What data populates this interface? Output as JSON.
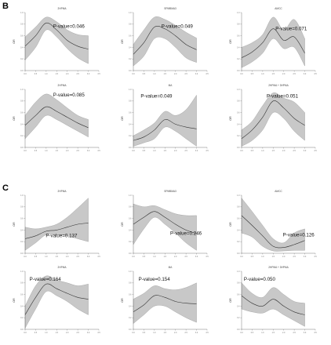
{
  "panels": [
    {
      "label": "B"
    },
    {
      "label": "C"
    }
  ],
  "chart_data": [
    {
      "type": "line",
      "panel": "B",
      "title": "2HPMA",
      "ylabel": "OR",
      "p_text": "P-value=0.046",
      "xlim": [
        0,
        3.5
      ],
      "ylim": [
        0,
        1
      ],
      "x": [
        0,
        0.5,
        1,
        1.5,
        2,
        2.5,
        3
      ],
      "values": [
        0.42,
        0.6,
        0.82,
        0.7,
        0.52,
        0.42,
        0.37
      ],
      "lower": [
        0.18,
        0.4,
        0.7,
        0.58,
        0.38,
        0.22,
        0.12
      ],
      "upper": [
        0.58,
        0.75,
        0.92,
        0.84,
        0.7,
        0.62,
        0.6
      ]
    },
    {
      "type": "line",
      "panel": "B",
      "title": "SPMBMA3",
      "ylabel": "OR",
      "p_text": "P-value=0.049",
      "xlim": [
        0,
        3.5
      ],
      "ylim": [
        0,
        1
      ],
      "x": [
        0,
        0.5,
        1,
        1.5,
        2,
        2.5,
        3
      ],
      "values": [
        0.28,
        0.48,
        0.75,
        0.72,
        0.6,
        0.45,
        0.36
      ],
      "lower": [
        0.08,
        0.25,
        0.55,
        0.55,
        0.4,
        0.22,
        0.14
      ],
      "upper": [
        0.45,
        0.7,
        0.92,
        0.88,
        0.78,
        0.66,
        0.56
      ]
    },
    {
      "type": "line",
      "panel": "B",
      "title": "AMCC",
      "ylabel": "OR",
      "p_text": "P-value=0.071",
      "xlim": [
        0,
        3.5
      ],
      "ylim": [
        0,
        1
      ],
      "x": [
        0,
        0.5,
        1,
        1.5,
        2,
        2.5,
        3
      ],
      "values": [
        0.22,
        0.32,
        0.48,
        0.72,
        0.52,
        0.58,
        0.3
      ],
      "lower": [
        0.05,
        0.15,
        0.3,
        0.55,
        0.38,
        0.4,
        0.08
      ],
      "upper": [
        0.4,
        0.48,
        0.62,
        0.92,
        0.7,
        0.88,
        0.55
      ]
    },
    {
      "type": "line",
      "panel": "B",
      "title": "2HPMA",
      "ylabel": "OR",
      "p_text": "P-value=0.085",
      "xlim": [
        0,
        3.5
      ],
      "ylim": [
        0,
        1
      ],
      "x": [
        0,
        0.5,
        1,
        1.5,
        2,
        2.5,
        3
      ],
      "values": [
        0.38,
        0.55,
        0.7,
        0.62,
        0.52,
        0.42,
        0.34
      ],
      "lower": [
        0.15,
        0.35,
        0.55,
        0.48,
        0.38,
        0.28,
        0.18
      ],
      "upper": [
        0.55,
        0.78,
        0.92,
        0.82,
        0.68,
        0.55,
        0.48
      ]
    },
    {
      "type": "line",
      "panel": "B",
      "title": "MA",
      "ylabel": "OR",
      "p_text": "P-value=0.049",
      "xlim": [
        0,
        3.5
      ],
      "ylim": [
        0,
        1
      ],
      "x": [
        0,
        0.5,
        1,
        1.5,
        2,
        2.5,
        3
      ],
      "values": [
        0.12,
        0.18,
        0.3,
        0.48,
        0.4,
        0.35,
        0.32
      ],
      "lower": [
        0.02,
        0.08,
        0.15,
        0.35,
        0.28,
        0.15,
        0.02
      ],
      "upper": [
        0.2,
        0.3,
        0.42,
        0.62,
        0.55,
        0.65,
        0.9
      ]
    },
    {
      "type": "line",
      "panel": "B",
      "title": "2HPMA + 3HPMA",
      "ylabel": "OR",
      "p_text": "P-value=0.051",
      "xlim": [
        0,
        3.5
      ],
      "ylim": [
        0,
        1
      ],
      "x": [
        0,
        0.5,
        1,
        1.5,
        2,
        2.5,
        3
      ],
      "values": [
        0.15,
        0.3,
        0.52,
        0.8,
        0.68,
        0.5,
        0.38
      ],
      "lower": [
        0.02,
        0.12,
        0.3,
        0.6,
        0.5,
        0.28,
        0.12
      ],
      "upper": [
        0.3,
        0.45,
        0.72,
        0.94,
        0.85,
        0.78,
        0.6
      ]
    },
    {
      "type": "line",
      "panel": "C",
      "title": "2HPMA",
      "ylabel": "OR",
      "p_text": "P-value=0.137",
      "xlim": [
        0,
        3.5
      ],
      "ylim": [
        0,
        1
      ],
      "x": [
        0,
        0.5,
        1,
        1.5,
        2,
        2.5,
        3
      ],
      "values": [
        0.25,
        0.3,
        0.38,
        0.4,
        0.45,
        0.5,
        0.52
      ],
      "lower": [
        0.05,
        0.18,
        0.32,
        0.32,
        0.3,
        0.25,
        0.2
      ],
      "upper": [
        0.45,
        0.42,
        0.45,
        0.5,
        0.62,
        0.78,
        0.95
      ]
    },
    {
      "type": "line",
      "panel": "C",
      "title": "SPMBMA3",
      "ylabel": "OR",
      "p_text": "P-value=0.246",
      "xlim": [
        0,
        3.5
      ],
      "ylim": [
        0,
        1
      ],
      "x": [
        0,
        0.5,
        1,
        1.5,
        2,
        2.5,
        3
      ],
      "values": [
        0.5,
        0.62,
        0.72,
        0.62,
        0.5,
        0.4,
        0.34
      ],
      "lower": [
        0.15,
        0.42,
        0.62,
        0.5,
        0.35,
        0.18,
        0.05
      ],
      "upper": [
        0.85,
        0.8,
        0.82,
        0.75,
        0.68,
        0.65,
        0.65
      ]
    },
    {
      "type": "line",
      "panel": "C",
      "title": "AMCC",
      "ylabel": "OR",
      "p_text": "P-value=0.126",
      "xlim": [
        0,
        3.5
      ],
      "ylim": [
        0,
        1
      ],
      "x": [
        0,
        0.5,
        1,
        1.5,
        2,
        2.5,
        3
      ],
      "values": [
        0.65,
        0.48,
        0.3,
        0.12,
        0.1,
        0.15,
        0.22
      ],
      "lower": [
        0.35,
        0.28,
        0.12,
        0.04,
        0.04,
        0.05,
        0.05
      ],
      "upper": [
        0.95,
        0.72,
        0.48,
        0.25,
        0.18,
        0.35,
        0.42
      ]
    },
    {
      "type": "line",
      "panel": "C",
      "title": "2HPMA",
      "ylabel": "OR",
      "p_text": "P-value=0.164",
      "xlim": [
        0,
        3.5
      ],
      "ylim": [
        0,
        1
      ],
      "x": [
        0,
        0.5,
        1,
        1.5,
        2,
        2.5,
        3
      ],
      "values": [
        0.25,
        0.55,
        0.78,
        0.7,
        0.62,
        0.55,
        0.52
      ],
      "lower": [
        0.02,
        0.35,
        0.65,
        0.58,
        0.48,
        0.35,
        0.25
      ],
      "upper": [
        0.4,
        0.75,
        0.92,
        0.85,
        0.8,
        0.75,
        0.78
      ]
    },
    {
      "type": "line",
      "panel": "C",
      "title": "MA",
      "ylabel": "OR",
      "p_text": "P-value=0.154",
      "xlim": [
        0,
        3.5
      ],
      "ylim": [
        0,
        1
      ],
      "x": [
        0,
        0.5,
        1,
        1.5,
        2,
        2.5,
        3
      ],
      "values": [
        0.3,
        0.42,
        0.58,
        0.55,
        0.48,
        0.45,
        0.44
      ],
      "lower": [
        0.1,
        0.25,
        0.4,
        0.4,
        0.3,
        0.2,
        0.12
      ],
      "upper": [
        0.52,
        0.62,
        0.75,
        0.7,
        0.68,
        0.72,
        0.8
      ]
    },
    {
      "type": "line",
      "panel": "C",
      "title": "2HPMA + 3HPMA",
      "ylabel": "OR",
      "p_text": "P-value=0.050",
      "xlim": [
        0,
        3.5
      ],
      "ylim": [
        0,
        1
      ],
      "x": [
        0,
        0.5,
        1,
        1.5,
        2,
        2.5,
        3
      ],
      "values": [
        0.58,
        0.45,
        0.4,
        0.52,
        0.4,
        0.3,
        0.25
      ],
      "lower": [
        0.35,
        0.3,
        0.28,
        0.35,
        0.25,
        0.15,
        0.05
      ],
      "upper": [
        0.8,
        0.62,
        0.55,
        0.72,
        0.6,
        0.48,
        0.45
      ]
    }
  ],
  "colors": {
    "band": "#c8c8c8",
    "line": "#333333",
    "axis": "#555555"
  }
}
